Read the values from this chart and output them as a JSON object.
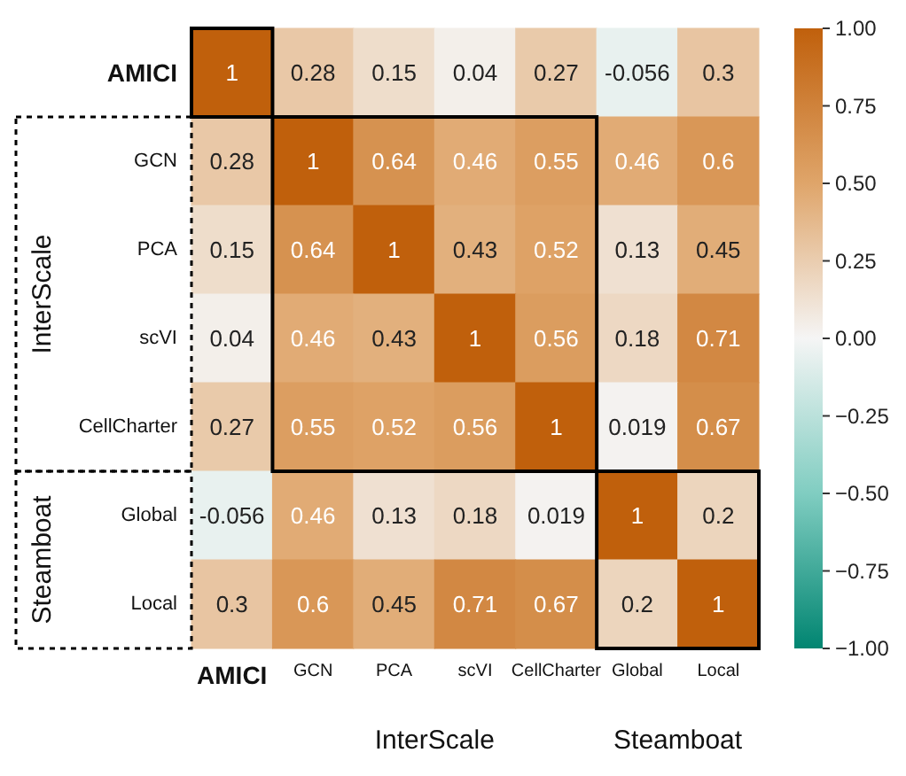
{
  "chart_data": {
    "type": "heatmap",
    "categories": [
      "AMICI",
      "GCN",
      "PCA",
      "scVI",
      "CellCharter",
      "Global",
      "Local"
    ],
    "y_categories": [
      "AMICI",
      "GCN",
      "PCA",
      "scVI",
      "CellCharter",
      "Global",
      "Local"
    ],
    "cells": [
      [
        1,
        0.28,
        0.15,
        0.04,
        0.27,
        -0.056,
        0.3
      ],
      [
        0.28,
        1,
        0.64,
        0.46,
        0.55,
        0.46,
        0.6
      ],
      [
        0.15,
        0.64,
        1,
        0.43,
        0.52,
        0.13,
        0.45
      ],
      [
        0.04,
        0.46,
        0.43,
        1,
        0.56,
        0.18,
        0.71
      ],
      [
        0.27,
        0.55,
        0.52,
        0.56,
        1,
        0.019,
        0.67
      ],
      [
        -0.056,
        0.46,
        0.13,
        0.18,
        0.019,
        1,
        0.2
      ],
      [
        0.3,
        0.6,
        0.45,
        0.71,
        0.67,
        0.2,
        1
      ]
    ],
    "data_labels": true,
    "clim": [
      -1,
      1
    ],
    "cticks": [
      {
        "value": -1,
        "label": "−1.00"
      },
      {
        "value": -0.75,
        "label": "−0.75"
      },
      {
        "value": -0.5,
        "label": "−0.50"
      },
      {
        "value": -0.25,
        "label": "−0.25"
      },
      {
        "value": 0,
        "label": "0.00"
      },
      {
        "value": 0.25,
        "label": "0.25"
      },
      {
        "value": 0.5,
        "label": "0.50"
      },
      {
        "value": 0.75,
        "label": "0.75"
      },
      {
        "value": 1,
        "label": "1.00"
      }
    ],
    "annotations": [
      "InterScale",
      "Steamboat"
    ]
  }
}
